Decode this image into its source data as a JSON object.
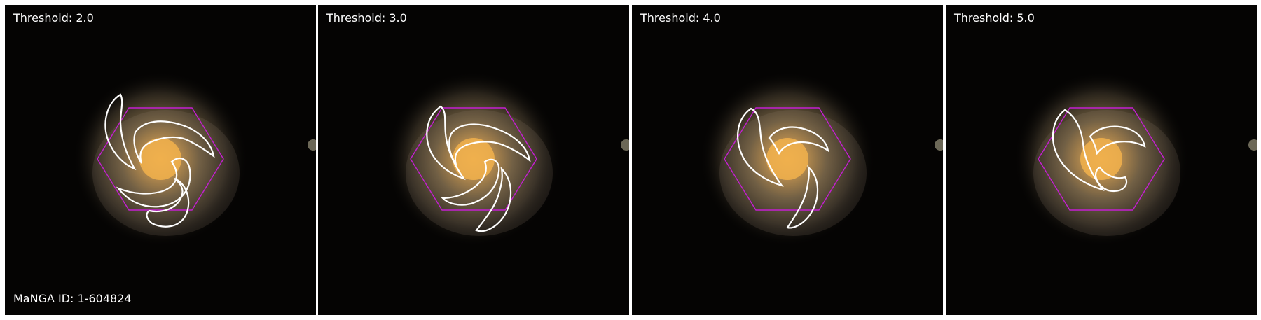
{
  "panels": [
    {
      "title": "Threshold: 2.0"
    },
    {
      "title": "Threshold: 3.0"
    },
    {
      "title": "Threshold: 4.0"
    },
    {
      "title": "Threshold: 5.0"
    }
  ],
  "galaxy_id_label": "MaNGA ID: 1-604824",
  "colors": {
    "background": "#050403",
    "galaxy_core": "#f4b34a",
    "contour": "#ffffff",
    "ifu_hexagon": "#c41fd2"
  }
}
